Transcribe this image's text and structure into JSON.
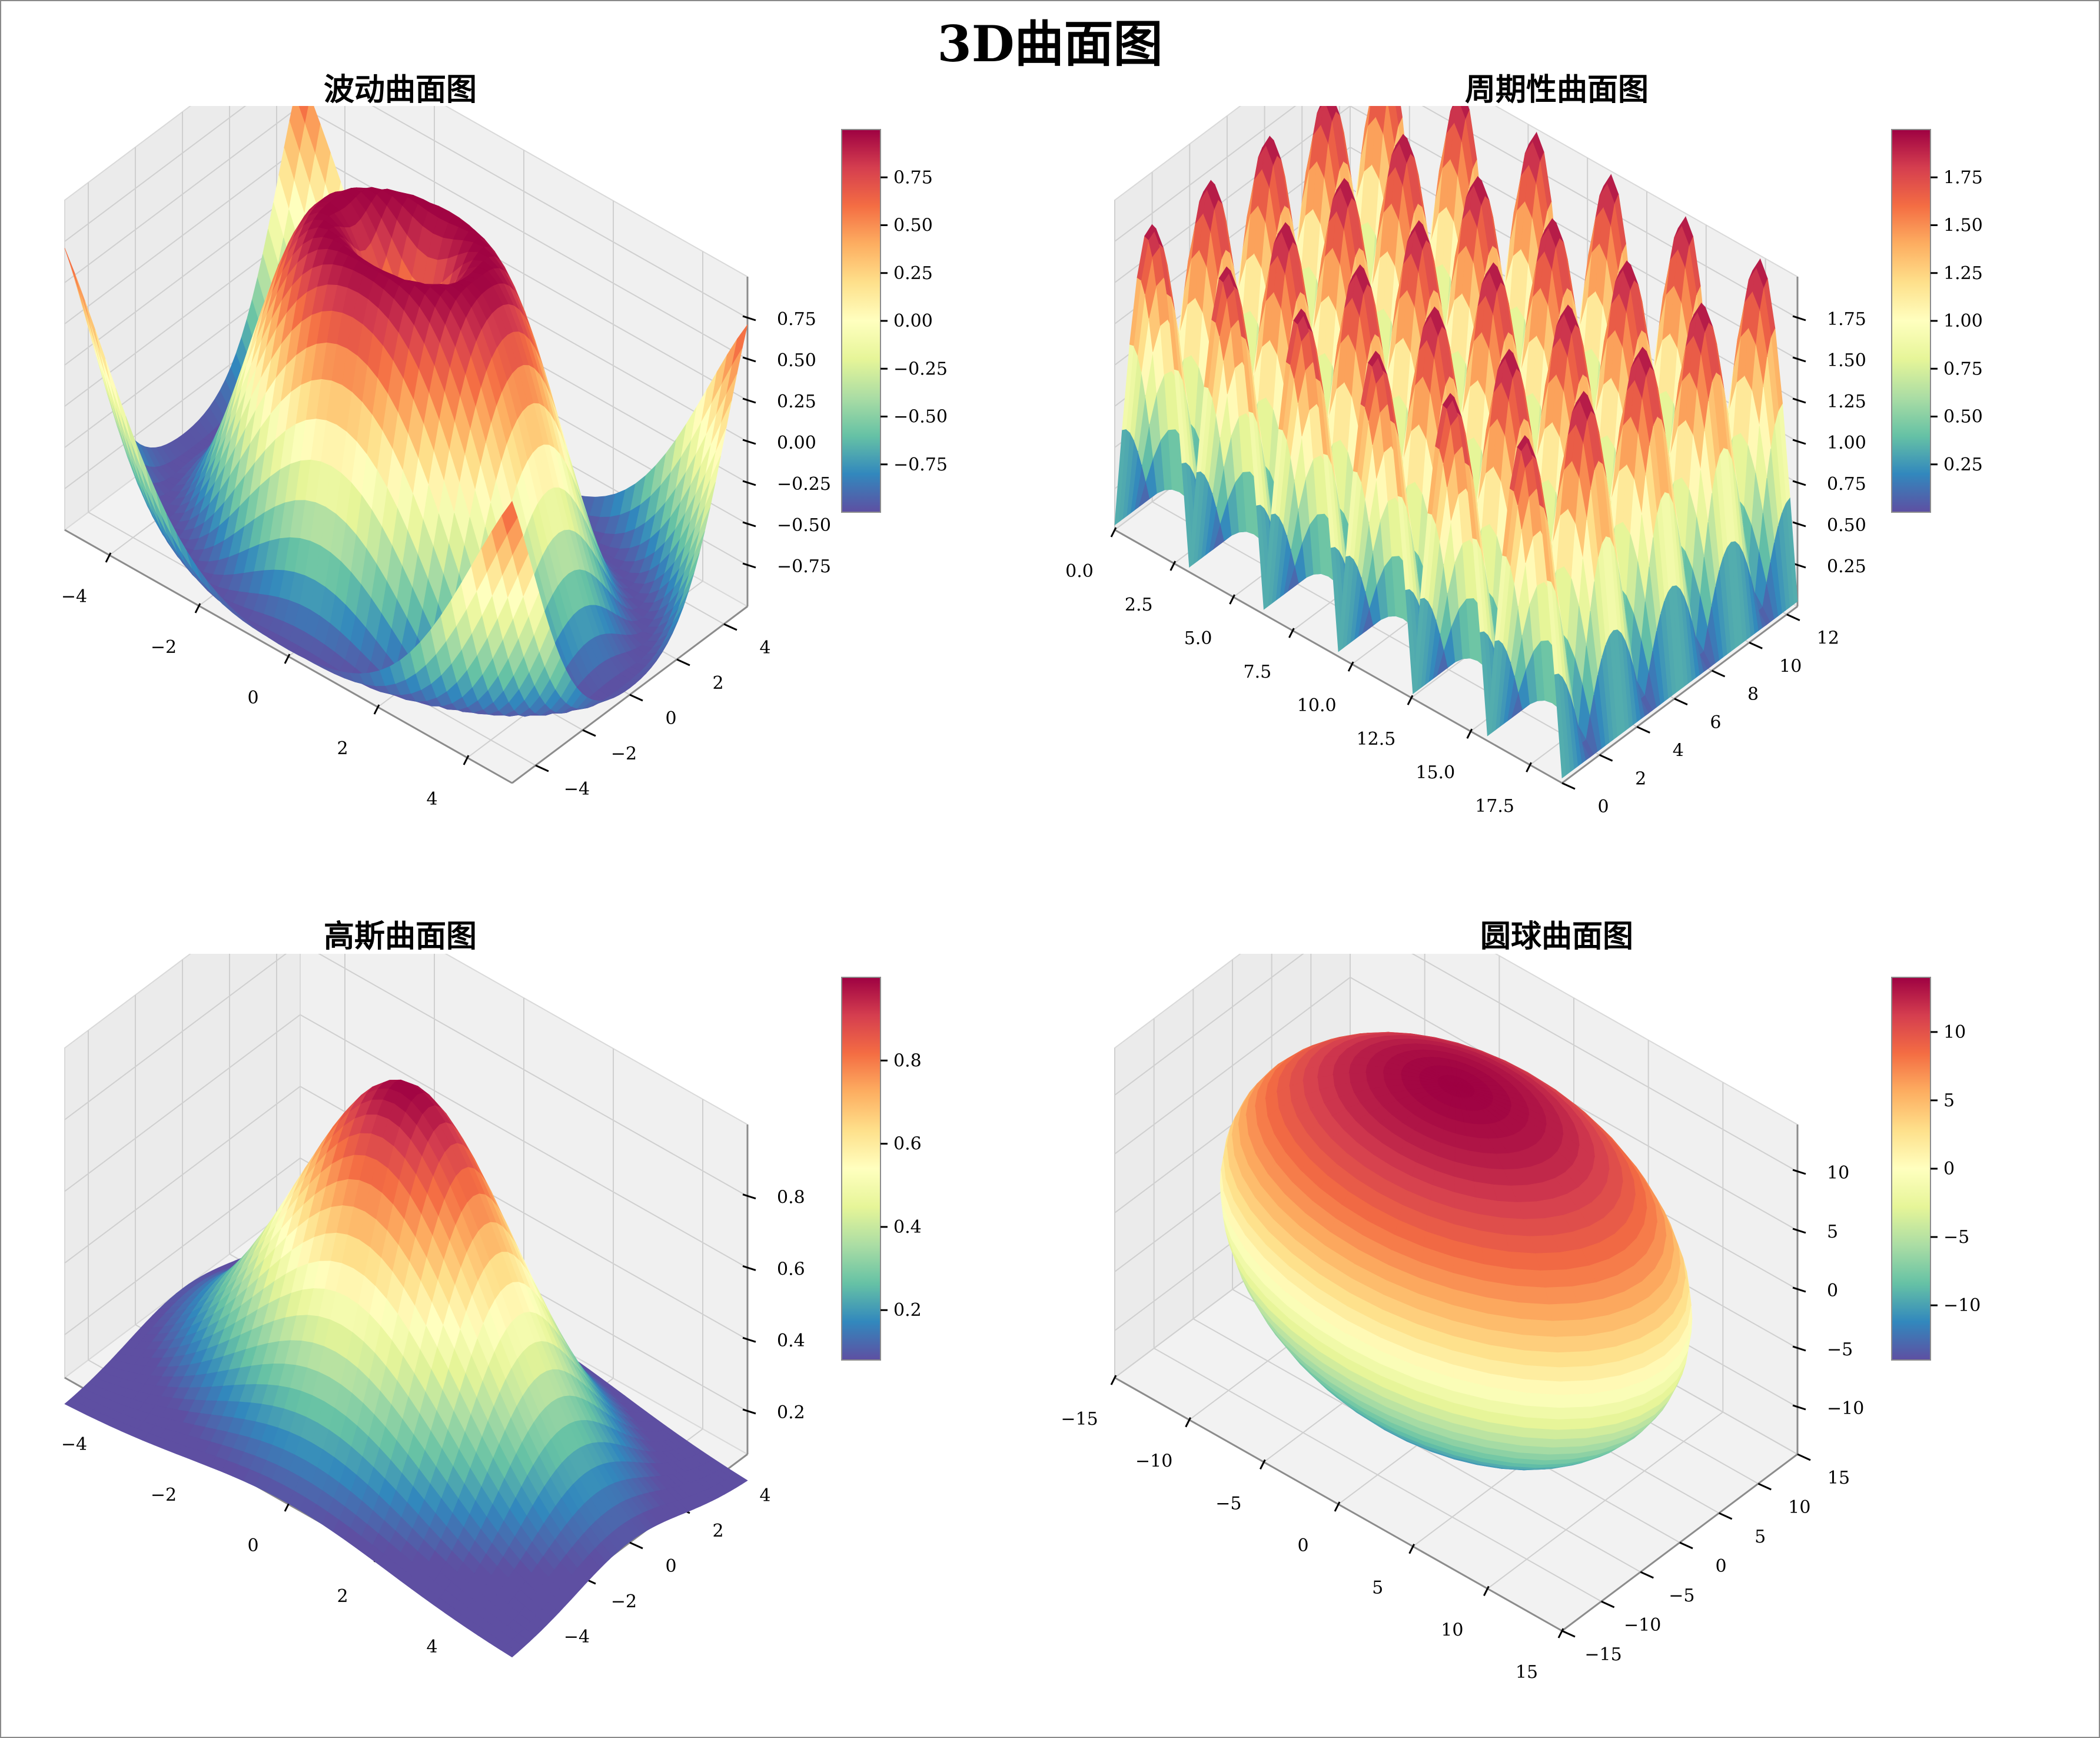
{
  "figure": {
    "title": "3D曲面图",
    "colormap": "Spectral_r",
    "colormap_stops": [
      "#5e4fa2",
      "#3288bd",
      "#66c2a5",
      "#abdda4",
      "#e6f598",
      "#ffffbf",
      "#fee08b",
      "#fdae61",
      "#f46d43",
      "#d53e4f",
      "#9e0142"
    ]
  },
  "chart_data": [
    {
      "type": "surface3d",
      "title": "波动曲面图",
      "function": "z = sin(sqrt(x^2 + y^2))",
      "x_ticks": [
        "−4",
        "−2",
        "0",
        "2",
        "4"
      ],
      "y_ticks": [
        "−4",
        "−2",
        "0",
        "2",
        "4"
      ],
      "z_ticks": [
        "−0.75",
        "−0.50",
        "−0.25",
        "0.00",
        "0.25",
        "0.50",
        "0.75"
      ],
      "xlim": [
        -5,
        5
      ],
      "ylim": [
        -5,
        5
      ],
      "zlim": [
        -1,
        1
      ],
      "colorbar": {
        "ticks": [
          "−0.75",
          "−0.50",
          "−0.25",
          "0.00",
          "0.25",
          "0.50",
          "0.75"
        ],
        "range": [
          -1,
          1
        ]
      },
      "grid": true
    },
    {
      "type": "surface3d",
      "title": "周期性曲面图",
      "function": "z = |sin(x)| + |cos(y)| (periodic)",
      "x_ticks": [
        "0.0",
        "2.5",
        "5.0",
        "7.5",
        "10.0",
        "12.5",
        "15.0",
        "17.5"
      ],
      "y_ticks": [
        "0",
        "2",
        "4",
        "6",
        "8",
        "10",
        "12"
      ],
      "z_ticks": [
        "0.25",
        "0.50",
        "0.75",
        "1.00",
        "1.25",
        "1.50",
        "1.75"
      ],
      "xlim": [
        0,
        18.85
      ],
      "ylim": [
        0,
        12.57
      ],
      "zlim": [
        0,
        2
      ],
      "colorbar": {
        "ticks": [
          "0.25",
          "0.50",
          "0.75",
          "1.00",
          "1.25",
          "1.50",
          "1.75"
        ],
        "range": [
          0,
          2
        ]
      },
      "grid": true
    },
    {
      "type": "surface3d",
      "title": "高斯曲面图",
      "function": "z = exp(-(x^2 + y^2) / 10)",
      "x_ticks": [
        "−4",
        "−2",
        "0",
        "2",
        "4"
      ],
      "y_ticks": [
        "−4",
        "−2",
        "0",
        "2",
        "4"
      ],
      "z_ticks": [
        "0.2",
        "0.4",
        "0.6",
        "0.8"
      ],
      "xlim": [
        -5,
        5
      ],
      "ylim": [
        -5,
        5
      ],
      "zlim": [
        0.08,
        1
      ],
      "colorbar": {
        "ticks": [
          "0.2",
          "0.4",
          "0.6",
          "0.8"
        ],
        "range": [
          0.08,
          1
        ]
      },
      "grid": true
    },
    {
      "type": "surface3d",
      "title": "圆球曲面图",
      "function": "sphere radius ≈ 14",
      "x_ticks": [
        "−15",
        "−10",
        "−5",
        "0",
        "5",
        "10",
        "15"
      ],
      "y_ticks": [
        "−15",
        "−10",
        "−5",
        "0",
        "5",
        "10",
        "15"
      ],
      "z_ticks": [
        "−10",
        "−5",
        "0",
        "5",
        "10"
      ],
      "xlim": [
        -15,
        15
      ],
      "ylim": [
        -15,
        15
      ],
      "zlim": [
        -14,
        14
      ],
      "colorbar": {
        "ticks": [
          "−10",
          "−5",
          "0",
          "5",
          "10"
        ],
        "range": [
          -14,
          14
        ]
      },
      "grid": true
    }
  ]
}
